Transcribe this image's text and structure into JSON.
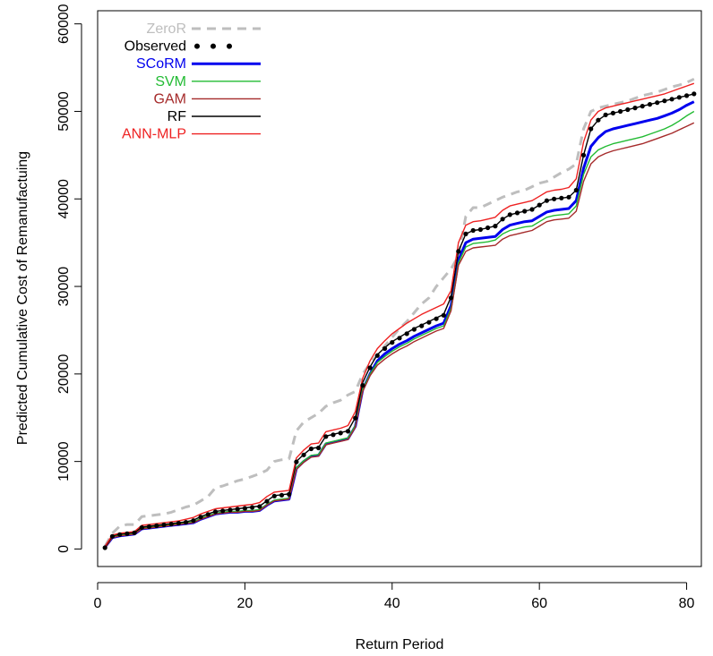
{
  "chart_data": {
    "type": "line",
    "title": "",
    "xlabel": "Return Period",
    "ylabel": "Predicted Cumulative Cost of Remanufactuing",
    "xlim": [
      0,
      82
    ],
    "ylim": [
      -2000,
      61500
    ],
    "grid": false,
    "legend_position": "top-left",
    "x_ticks": [
      0,
      20,
      40,
      60,
      80
    ],
    "y_ticks": [
      0,
      10000,
      20000,
      30000,
      40000,
      50000,
      60000
    ],
    "x": [
      1,
      2,
      3,
      4,
      5,
      6,
      7,
      8,
      9,
      10,
      11,
      12,
      13,
      14,
      15,
      16,
      17,
      18,
      19,
      20,
      21,
      22,
      23,
      24,
      25,
      26,
      27,
      28,
      29,
      30,
      31,
      32,
      33,
      34,
      35,
      36,
      37,
      38,
      39,
      40,
      41,
      42,
      43,
      44,
      45,
      46,
      47,
      48,
      49,
      50,
      51,
      52,
      53,
      54,
      55,
      56,
      57,
      58,
      59,
      60,
      61,
      62,
      63,
      64,
      65,
      66,
      67,
      68,
      69,
      70,
      71,
      72,
      73,
      74,
      75,
      76,
      77,
      78,
      79,
      80,
      81
    ],
    "series": [
      {
        "name": "ZeroR",
        "color": "#bebebe",
        "style": "dashed",
        "width": 3,
        "values": [
          300,
          1800,
          2600,
          2800,
          2800,
          3700,
          3800,
          3900,
          4000,
          4200,
          4500,
          4800,
          5000,
          5500,
          6000,
          7000,
          7200,
          7500,
          7800,
          8000,
          8300,
          8600,
          9000,
          10000,
          10200,
          10300,
          13500,
          14500,
          15000,
          15500,
          16300,
          16700,
          17000,
          17600,
          18000,
          20000,
          21200,
          22200,
          23200,
          24200,
          25200,
          26000,
          27000,
          28000,
          28700,
          30000,
          31000,
          32000,
          33500,
          38000,
          39000,
          39000,
          39400,
          39800,
          40200,
          40500,
          40800,
          41000,
          41400,
          41800,
          42000,
          42500,
          43000,
          43400,
          44000,
          48000,
          50000,
          50400,
          50600,
          50800,
          51000,
          51200,
          51500,
          51800,
          52000,
          52200,
          52500,
          52800,
          53000,
          53300,
          53700
        ]
      },
      {
        "name": "SCoRM",
        "color": "#0000ee",
        "style": "solid",
        "width": 3,
        "values": [
          200,
          1300,
          1500,
          1600,
          1700,
          2300,
          2400,
          2500,
          2600,
          2700,
          2800,
          2900,
          3000,
          3400,
          3700,
          4000,
          4100,
          4200,
          4200,
          4300,
          4300,
          4400,
          5000,
          5500,
          5600,
          5700,
          9200,
          10000,
          10600,
          10700,
          12000,
          12200,
          12400,
          12600,
          14000,
          18200,
          20000,
          21500,
          22300,
          22900,
          23400,
          23800,
          24300,
          24700,
          25100,
          25500,
          25800,
          27800,
          33000,
          35000,
          35400,
          35500,
          35600,
          35700,
          36500,
          37000,
          37200,
          37400,
          37500,
          38000,
          38500,
          38700,
          38800,
          38900,
          39800,
          43500,
          46000,
          47000,
          47700,
          48000,
          48200,
          48400,
          48600,
          48800,
          49000,
          49200,
          49500,
          49800,
          50200,
          50700,
          51100
        ]
      },
      {
        "name": "SVM",
        "color": "#22bb33",
        "style": "solid",
        "width": 1.4,
        "values": [
          200,
          1400,
          1600,
          1700,
          1800,
          2400,
          2500,
          2600,
          2700,
          2800,
          2900,
          3000,
          3100,
          3500,
          3800,
          4100,
          4200,
          4300,
          4300,
          4400,
          4400,
          4500,
          5100,
          5600,
          5700,
          5800,
          9300,
          10100,
          10700,
          10800,
          12100,
          12300,
          12500,
          12700,
          14100,
          18300,
          20000,
          21300,
          22000,
          22600,
          23100,
          23500,
          24000,
          24400,
          24800,
          25200,
          25500,
          27500,
          32700,
          34500,
          34900,
          35000,
          35100,
          35300,
          36000,
          36400,
          36600,
          36800,
          36900,
          37400,
          37900,
          38100,
          38200,
          38300,
          39200,
          42800,
          44800,
          45600,
          46000,
          46300,
          46500,
          46700,
          46900,
          47100,
          47400,
          47700,
          48000,
          48400,
          48900,
          49500,
          50000
        ]
      },
      {
        "name": "GAM",
        "color": "#a52a2a",
        "style": "solid",
        "width": 1.4,
        "values": [
          100,
          1300,
          1500,
          1600,
          1700,
          2300,
          2400,
          2500,
          2600,
          2700,
          2800,
          2900,
          3000,
          3400,
          3700,
          4000,
          4100,
          4200,
          4200,
          4300,
          4300,
          4400,
          5000,
          5500,
          5600,
          5700,
          9100,
          9900,
          10500,
          10600,
          11900,
          12100,
          12300,
          12500,
          13900,
          18000,
          19800,
          21000,
          21700,
          22300,
          22800,
          23200,
          23700,
          24100,
          24500,
          24900,
          25200,
          27200,
          32400,
          34000,
          34400,
          34500,
          34600,
          34700,
          35400,
          35800,
          36000,
          36200,
          36400,
          36900,
          37400,
          37600,
          37700,
          37800,
          38600,
          42000,
          44000,
          44800,
          45200,
          45500,
          45700,
          45900,
          46100,
          46300,
          46600,
          46900,
          47200,
          47500,
          47900,
          48300,
          48700
        ]
      },
      {
        "name": "RF",
        "color": "#000000",
        "style": "solid",
        "width": 1.4,
        "values": [
          200,
          1500,
          1700,
          1800,
          1900,
          2500,
          2600,
          2700,
          2800,
          2900,
          3000,
          3100,
          3300,
          3700,
          4000,
          4300,
          4400,
          4500,
          4600,
          4700,
          4800,
          4900,
          5500,
          6100,
          6200,
          6300,
          10000,
          10800,
          11500,
          11600,
          12900,
          13100,
          13300,
          13500,
          15000,
          19000,
          20800,
          22200,
          23000,
          23700,
          24200,
          24700,
          25200,
          25600,
          26000,
          26400,
          26800,
          28800,
          34000,
          36000,
          36400,
          36500,
          36700,
          36900,
          37700,
          38200,
          38400,
          38600,
          38800,
          39300,
          39800,
          40000,
          40100,
          40200,
          41000,
          45000,
          48000,
          49000,
          49600,
          49800,
          50000,
          50200,
          50400,
          50600,
          50800,
          51000,
          51200,
          51400,
          51600,
          51800,
          52000
        ]
      },
      {
        "name": "ANN-MLP",
        "color": "#ee2222",
        "style": "solid",
        "width": 1.4,
        "values": [
          300,
          1600,
          1800,
          1900,
          2000,
          2700,
          2800,
          2900,
          3000,
          3100,
          3200,
          3400,
          3600,
          4000,
          4300,
          4600,
          4700,
          4800,
          4900,
          5000,
          5100,
          5300,
          6000,
          6500,
          6600,
          6700,
          10400,
          11300,
          12000,
          12100,
          13400,
          13600,
          13800,
          14100,
          15700,
          19500,
          21500,
          22900,
          23800,
          24600,
          25200,
          25800,
          26300,
          26800,
          27200,
          27600,
          28000,
          29500,
          35000,
          37000,
          37400,
          37500,
          37700,
          37900,
          38700,
          39200,
          39400,
          39600,
          39800,
          40300,
          40800,
          41000,
          41100,
          41300,
          42300,
          46500,
          49000,
          50000,
          50400,
          50600,
          50800,
          51000,
          51200,
          51400,
          51600,
          51800,
          52000,
          52300,
          52600,
          52900,
          53200
        ]
      }
    ],
    "observed": {
      "name": "Observed",
      "color": "#000000",
      "style": "points",
      "values": [
        150,
        1450,
        1650,
        1750,
        1850,
        2450,
        2550,
        2650,
        2750,
        2850,
        2950,
        3050,
        3250,
        3650,
        3950,
        4250,
        4350,
        4450,
        4550,
        4650,
        4750,
        4850,
        5450,
        6050,
        6150,
        6250,
        9950,
        10750,
        11450,
        11550,
        12850,
        13050,
        13250,
        13450,
        14950,
        18700,
        20700,
        22100,
        22900,
        23600,
        24100,
        24600,
        25100,
        25500,
        25900,
        26300,
        26700,
        28700,
        34000,
        36000,
        36400,
        36500,
        36700,
        36900,
        37700,
        38200,
        38400,
        38600,
        38800,
        39300,
        39800,
        40000,
        40100,
        40200,
        41000,
        45000,
        48000,
        49000,
        49600,
        49800,
        50000,
        50200,
        50400,
        50600,
        50800,
        51000,
        51200,
        51400,
        51600,
        51800,
        52000
      ]
    },
    "legend": [
      "ZeroR",
      "Observed",
      "SCoRM",
      "SVM",
      "GAM",
      "RF",
      "ANN-MLP"
    ]
  }
}
